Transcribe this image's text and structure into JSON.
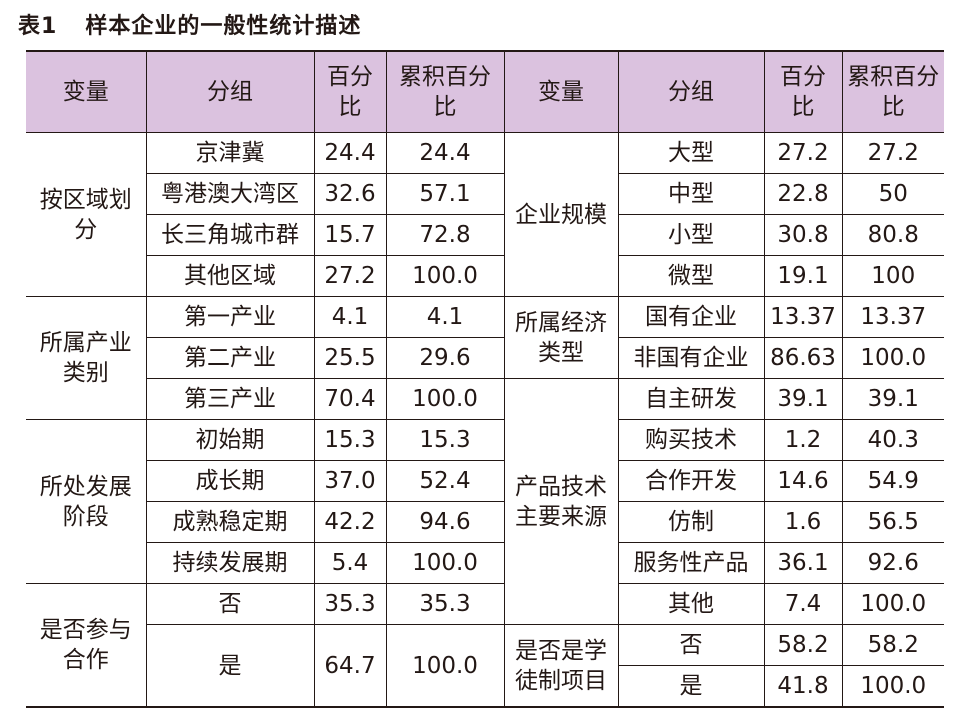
{
  "caption": {
    "number": "表1",
    "title": "样本企业的一般性统计描述"
  },
  "headers": {
    "variable": "变量",
    "group": "分组",
    "percent": "百分比",
    "cumulative": "累积百分比"
  },
  "left": {
    "region": {
      "name": "按区域划分",
      "rows": [
        {
          "group": "京津冀",
          "pct": "24.4",
          "cum": "24.4"
        },
        {
          "group": "粤港澳大湾区",
          "pct": "32.6",
          "cum": "57.1"
        },
        {
          "group": "长三角城市群",
          "pct": "15.7",
          "cum": "72.8"
        },
        {
          "group": "其他区域",
          "pct": "27.2",
          "cum": "100.0"
        }
      ]
    },
    "industry": {
      "name": "所属产业类别",
      "rows": [
        {
          "group": "第一产业",
          "pct": "4.1",
          "cum": "4.1"
        },
        {
          "group": "第二产业",
          "pct": "25.5",
          "cum": "29.6"
        },
        {
          "group": "第三产业",
          "pct": "70.4",
          "cum": "100.0"
        }
      ]
    },
    "stage": {
      "name": "所处发展阶段",
      "rows": [
        {
          "group": "初始期",
          "pct": "15.3",
          "cum": "15.3"
        },
        {
          "group": "成长期",
          "pct": "37.0",
          "cum": "52.4"
        },
        {
          "group": "成熟稳定期",
          "pct": "42.2",
          "cum": "94.6"
        },
        {
          "group": "持续发展期",
          "pct": "5.4",
          "cum": "100.0"
        }
      ]
    },
    "coop": {
      "name": "是否参与合作",
      "rows": [
        {
          "group": "否",
          "pct": "35.3",
          "cum": "35.3"
        },
        {
          "group": "是",
          "pct": "64.7",
          "cum": "100.0"
        }
      ]
    }
  },
  "right": {
    "scale": {
      "name": "企业规模",
      "rows": [
        {
          "group": "大型",
          "pct": "27.2",
          "cum": "27.2"
        },
        {
          "group": "中型",
          "pct": "22.8",
          "cum": "50"
        },
        {
          "group": "小型",
          "pct": "30.8",
          "cum": "80.8"
        },
        {
          "group": "微型",
          "pct": "19.1",
          "cum": "100"
        }
      ]
    },
    "ownership": {
      "name": "所属经济类型",
      "rows": [
        {
          "group": "国有企业",
          "pct": "13.37",
          "cum": "13.37"
        },
        {
          "group": "非国有企业",
          "pct": "86.63",
          "cum": "100.0"
        }
      ]
    },
    "tech": {
      "name": "产品技术主要来源",
      "rows": [
        {
          "group": "自主研发",
          "pct": "39.1",
          "cum": "39.1"
        },
        {
          "group": "购买技术",
          "pct": "1.2",
          "cum": "40.3"
        },
        {
          "group": "合作开发",
          "pct": "14.6",
          "cum": "54.9"
        },
        {
          "group": "仿制",
          "pct": "1.6",
          "cum": "56.5"
        },
        {
          "group": "服务性产品",
          "pct": "36.1",
          "cum": "92.6"
        },
        {
          "group": "其他",
          "pct": "7.4",
          "cum": "100.0"
        }
      ]
    },
    "apprentice": {
      "name": "是否是学徒制项目",
      "rows": [
        {
          "group": "否",
          "pct": "58.2",
          "cum": "58.2"
        },
        {
          "group": "是",
          "pct": "41.8",
          "cum": "100.0"
        }
      ]
    }
  }
}
